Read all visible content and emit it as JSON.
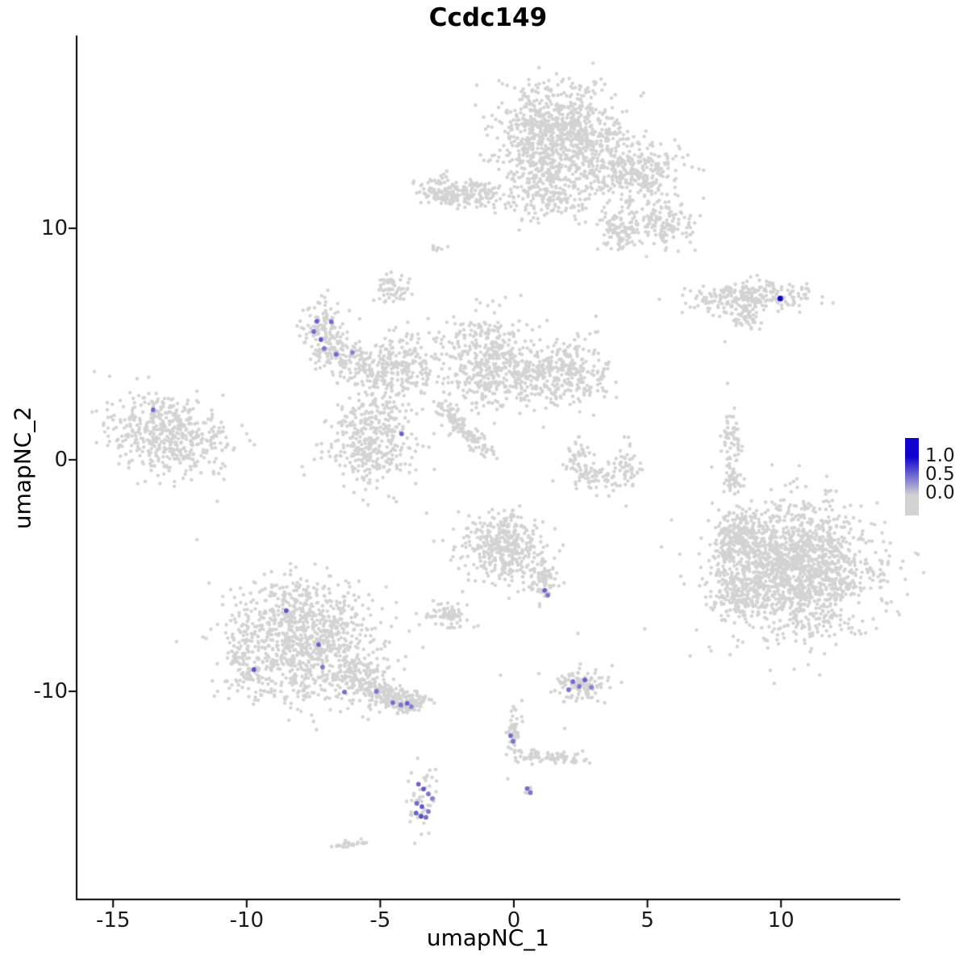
{
  "title": "Ccdc149",
  "axes": {
    "x_label": "umapNC_1",
    "y_label": "umapNC_2",
    "x_ticks": [
      "-15",
      "-10",
      "-5",
      "0",
      "5",
      "10"
    ],
    "x_tick_values": [
      -15,
      -10,
      -5,
      0,
      5,
      10
    ],
    "y_ticks": [
      "10",
      "0",
      "-10"
    ],
    "y_tick_values": [
      10,
      0,
      -10
    ]
  },
  "legend": {
    "labels": [
      "1.0",
      "0.5",
      "0.0"
    ]
  },
  "colors": {
    "low": "#d3d3d3",
    "high": "#1003cf",
    "axis": "#000000",
    "text": "#1a1a1a"
  },
  "chart_data": {
    "type": "scatter",
    "title": "Ccdc149",
    "xlabel": "umapNC_1",
    "ylabel": "umapNC_2",
    "xlim": [
      -16.4,
      14.4
    ],
    "ylim": [
      -19.0,
      18.3
    ],
    "legend_range": [
      0.0,
      1.0
    ],
    "grid": false,
    "point_color_low": "#d3d3d3",
    "point_color_high": "#1003cf",
    "clusters": [
      {
        "name": "top-main",
        "cx": 1.6,
        "cy": 14.1,
        "sx": 1.2,
        "sy": 1.05,
        "n": 850,
        "rot": 0
      },
      {
        "name": "top-neck",
        "cx": 1.3,
        "cy": 11.6,
        "sx": 0.7,
        "sy": 0.7,
        "n": 200,
        "rot": 0
      },
      {
        "name": "top-right",
        "cx": 4.3,
        "cy": 12.4,
        "sx": 0.95,
        "sy": 0.75,
        "n": 350,
        "rot": 0
      },
      {
        "name": "top-far-right",
        "cx": 5.7,
        "cy": 10.2,
        "sx": 0.5,
        "sy": 0.5,
        "n": 120,
        "rot": 0
      },
      {
        "name": "top-right-lower",
        "cx": 4.0,
        "cy": 9.9,
        "sx": 0.45,
        "sy": 0.4,
        "n": 100,
        "rot": 0
      },
      {
        "name": "top-left-arm",
        "cx": -1.6,
        "cy": 11.5,
        "sx": 0.75,
        "sy": 0.28,
        "n": 160,
        "rot": 0
      },
      {
        "name": "top-left-tip",
        "cx": -2.8,
        "cy": 11.6,
        "sx": 0.38,
        "sy": 0.3,
        "n": 70,
        "rot": 0
      },
      {
        "name": "right-upper",
        "cx": 8.8,
        "cy": 7.0,
        "sx": 1.1,
        "sy": 0.33,
        "n": 260,
        "rot": 4
      },
      {
        "name": "right-upper-sub",
        "cx": 8.6,
        "cy": 6.0,
        "sx": 0.3,
        "sy": 0.2,
        "n": 35,
        "rot": 0
      },
      {
        "name": "spur-top",
        "cx": -7.2,
        "cy": 5.8,
        "sx": 0.42,
        "sy": 0.5,
        "n": 110,
        "rot": 0
      },
      {
        "name": "spur-bottom",
        "cx": -6.7,
        "cy": 4.6,
        "sx": 0.48,
        "sy": 0.4,
        "n": 90,
        "rot": 0
      },
      {
        "name": "spur-link",
        "cx": -5.7,
        "cy": 4.2,
        "sx": 0.5,
        "sy": 0.4,
        "n": 70,
        "rot": 0
      },
      {
        "name": "center-left",
        "cx": -4.3,
        "cy": 3.9,
        "sx": 0.7,
        "sy": 0.7,
        "n": 230,
        "rot": 0
      },
      {
        "name": "center-top-nub",
        "cx": -4.5,
        "cy": 7.4,
        "sx": 0.36,
        "sy": 0.26,
        "n": 60,
        "rot": 0
      },
      {
        "name": "tiny-top",
        "cx": -2.9,
        "cy": 9.1,
        "sx": 0.18,
        "sy": 0.12,
        "n": 8,
        "rot": 0
      },
      {
        "name": "center-main",
        "cx": -1.1,
        "cy": 4.3,
        "sx": 0.85,
        "sy": 1.05,
        "n": 420,
        "rot": 0
      },
      {
        "name": "center-bridge",
        "cx": 0.4,
        "cy": 3.6,
        "sx": 0.5,
        "sy": 0.6,
        "n": 100,
        "rot": 0
      },
      {
        "name": "center-right",
        "cx": 2.0,
        "cy": 3.8,
        "sx": 0.75,
        "sy": 0.72,
        "n": 280,
        "rot": 0
      },
      {
        "name": "center-lower-left",
        "cx": -5.3,
        "cy": 0.9,
        "sx": 0.85,
        "sy": 1.1,
        "n": 380,
        "rot": 0
      },
      {
        "name": "arc-left",
        "cx": 2.4,
        "cy": 0.0,
        "sx": 0.3,
        "sy": 0.42,
        "n": 50,
        "rot": 0
      },
      {
        "name": "arc-mid",
        "cx": 3.2,
        "cy": -0.8,
        "sx": 0.45,
        "sy": 0.3,
        "n": 55,
        "rot": 0
      },
      {
        "name": "arc-right",
        "cx": 4.2,
        "cy": -0.3,
        "sx": 0.3,
        "sy": 0.45,
        "n": 50,
        "rot": 0
      },
      {
        "name": "left-island",
        "cx": -12.9,
        "cy": 1.1,
        "sx": 1.15,
        "sy": 0.85,
        "n": 480,
        "rot": -12
      },
      {
        "name": "right-streak-upper",
        "cx": 8.15,
        "cy": 0.9,
        "sx": 0.18,
        "sy": 0.48,
        "n": 55,
        "rot": 0
      },
      {
        "name": "right-streak-lower",
        "cx": 8.25,
        "cy": -0.8,
        "sx": 0.18,
        "sy": 0.4,
        "n": 45,
        "rot": 0
      },
      {
        "name": "right-big",
        "cx": 10.5,
        "cy": -4.7,
        "sx": 1.45,
        "sy": 1.45,
        "n": 1600,
        "rot": 0
      },
      {
        "name": "right-big-west1",
        "cx": 8.4,
        "cy": -3.2,
        "sx": 0.4,
        "sy": 0.5,
        "n": 120,
        "rot": 0
      },
      {
        "name": "right-big-west2",
        "cx": 8.3,
        "cy": -5.8,
        "sx": 0.4,
        "sy": 0.5,
        "n": 100,
        "rot": 0
      },
      {
        "name": "right-big-west3",
        "cx": 8.0,
        "cy": -4.5,
        "sx": 0.3,
        "sy": 0.7,
        "n": 60,
        "rot": 0
      },
      {
        "name": "center-bottom",
        "cx": -0.4,
        "cy": -3.7,
        "sx": 0.8,
        "sy": 0.75,
        "n": 380,
        "rot": 0
      },
      {
        "name": "center-bottom-tail",
        "cx": 1.1,
        "cy": -5.2,
        "sx": 0.3,
        "sy": 0.45,
        "n": 80,
        "rot": 0
      },
      {
        "name": "small-mid",
        "cx": -2.5,
        "cy": -6.6,
        "sx": 0.4,
        "sy": 0.3,
        "n": 75,
        "rot": 0
      },
      {
        "name": "bottomleft-main",
        "cx": -7.9,
        "cy": -7.7,
        "sx": 1.35,
        "sy": 1.25,
        "n": 950,
        "rot": -20
      },
      {
        "name": "bottomleft-west",
        "cx": -10.1,
        "cy": -8.8,
        "sx": 0.35,
        "sy": 0.55,
        "n": 80,
        "rot": 0
      },
      {
        "name": "bottomleft-arm1",
        "cx": -5.9,
        "cy": -9.4,
        "sx": 0.55,
        "sy": 0.4,
        "n": 130,
        "rot": -20
      },
      {
        "name": "bottomleft-arm2",
        "cx": -4.7,
        "cy": -10.2,
        "sx": 0.5,
        "sy": 0.3,
        "n": 130,
        "rot": -15
      },
      {
        "name": "bottomleft-tip",
        "cx": -3.9,
        "cy": -10.5,
        "sx": 0.3,
        "sy": 0.25,
        "n": 70,
        "rot": 0
      },
      {
        "name": "bottomleft-south",
        "cx": -8.7,
        "cy": -9.9,
        "sx": 0.8,
        "sy": 0.4,
        "n": 40,
        "rot": 0
      },
      {
        "name": "small-southeast",
        "cx": 2.5,
        "cy": -9.7,
        "sx": 0.5,
        "sy": 0.35,
        "n": 115,
        "rot": 0
      },
      {
        "name": "stream-vertical",
        "cx": 0.0,
        "cy": -11.8,
        "sx": 0.13,
        "sy": 0.6,
        "n": 55,
        "rot": 0
      },
      {
        "name": "bottom-purple-host",
        "cx": -3.45,
        "cy": -14.7,
        "sx": 0.28,
        "sy": 0.6,
        "n": 45,
        "rot": 0
      },
      {
        "name": "bottom-pair",
        "cx": 0.55,
        "cy": -14.25,
        "sx": 0.1,
        "sy": 0.1,
        "n": 5,
        "rot": 0
      },
      {
        "name": "bottom-tiny",
        "cx": -6.15,
        "cy": -16.6,
        "sx": 0.28,
        "sy": 0.1,
        "n": 26,
        "rot": 0
      }
    ],
    "segments": [
      {
        "x1": -2.8,
        "y1": 2.4,
        "x2": -0.9,
        "y2": 0.2,
        "n": 130,
        "jitter": 0.16
      },
      {
        "x1": 0.3,
        "y1": -12.75,
        "x2": 2.75,
        "y2": -12.95,
        "n": 75,
        "jitter": 0.13
      }
    ],
    "singles": [
      [
        -2.7,
        9.1
      ],
      [
        7.9,
        5.1
      ],
      [
        8.0,
        3.3
      ],
      [
        4.2,
        -2.0
      ],
      [
        4.9,
        -7.3
      ],
      [
        2.4,
        -7.5
      ],
      [
        -7.5,
        -11.3
      ],
      [
        1.9,
        -11.6
      ],
      [
        6.6,
        6.6
      ],
      [
        5.9,
        -2.6
      ],
      [
        0.3,
        -10.4
      ],
      [
        -0.5,
        -9.3
      ]
    ],
    "highlights": [
      [
        9.97,
        6.97,
        1.0
      ],
      [
        -7.37,
        5.99,
        0.55
      ],
      [
        -6.83,
        5.96,
        0.5
      ],
      [
        -7.49,
        5.54,
        0.5
      ],
      [
        -7.22,
        5.19,
        0.6
      ],
      [
        -7.1,
        4.81,
        0.45
      ],
      [
        -6.65,
        4.56,
        0.5
      ],
      [
        -6.04,
        4.63,
        0.4
      ],
      [
        -13.5,
        2.16,
        0.5
      ],
      [
        -4.2,
        1.12,
        0.55
      ],
      [
        -8.52,
        -6.52,
        0.6
      ],
      [
        -7.31,
        -7.98,
        0.55
      ],
      [
        -9.73,
        -9.06,
        0.6
      ],
      [
        -7.16,
        -8.95,
        0.45
      ],
      [
        -6.34,
        -10.03,
        0.5
      ],
      [
        -5.14,
        -10.0,
        0.45
      ],
      [
        -4.53,
        -10.49,
        0.5
      ],
      [
        -4.23,
        -10.59,
        0.45
      ],
      [
        -3.99,
        -10.52,
        0.55
      ],
      [
        -3.84,
        -10.66,
        0.4
      ],
      [
        1.15,
        -5.64,
        0.55
      ],
      [
        1.27,
        -5.85,
        0.45
      ],
      [
        2.21,
        -9.58,
        0.5
      ],
      [
        2.45,
        -9.79,
        0.45
      ],
      [
        2.66,
        -9.51,
        0.55
      ],
      [
        2.9,
        -9.83,
        0.4
      ],
      [
        2.05,
        -9.93,
        0.45
      ],
      [
        -0.12,
        -11.92,
        0.5
      ],
      [
        -0.03,
        -12.16,
        0.45
      ],
      [
        -3.57,
        -14.01,
        0.55
      ],
      [
        -3.38,
        -14.22,
        0.6
      ],
      [
        -3.2,
        -14.43,
        0.45
      ],
      [
        -3.63,
        -14.84,
        0.5
      ],
      [
        -3.44,
        -14.98,
        0.6
      ],
      [
        -3.66,
        -15.26,
        0.55
      ],
      [
        -3.47,
        -15.4,
        0.65
      ],
      [
        -3.29,
        -15.44,
        0.5
      ],
      [
        -3.2,
        -15.19,
        0.45
      ],
      [
        -3.05,
        -14.63,
        0.4
      ],
      [
        0.5,
        -14.2,
        0.5
      ],
      [
        0.62,
        -14.38,
        0.45
      ]
    ]
  }
}
